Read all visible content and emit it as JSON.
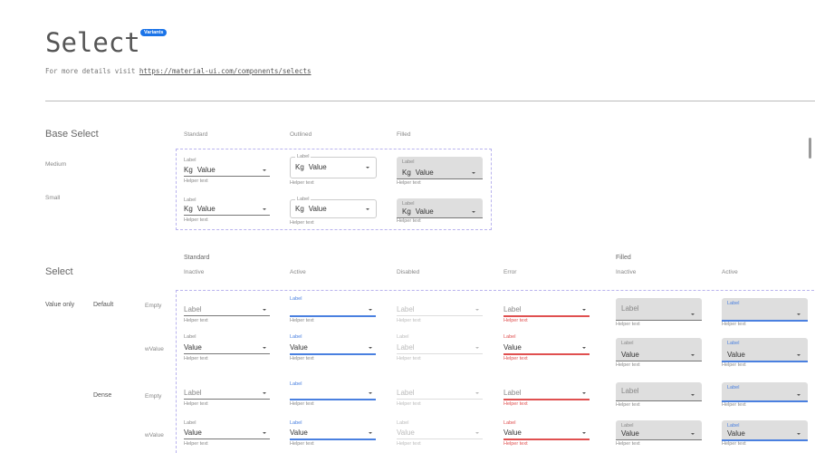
{
  "header": {
    "title": "Select",
    "badge": "Variants",
    "subtitle_prefix": "For more details visit ",
    "link": "https://material-ui.com/components/selects"
  },
  "base": {
    "title": "Base Select",
    "columns": [
      "Standard",
      "Outlined",
      "Filled"
    ],
    "rows": [
      "Medium",
      "Small"
    ]
  },
  "select": {
    "title": "Select",
    "groups": [
      "Standard",
      "Filled"
    ],
    "columns": [
      "Inactive",
      "Active",
      "Disabled",
      "Error",
      "Inactive",
      "Active"
    ],
    "row_group": "Value only",
    "densities": [
      "Default",
      "Dense"
    ],
    "states": [
      "Empty",
      "wValue"
    ]
  },
  "field": {
    "label": "Label",
    "value": "Value",
    "helper": "Helper text",
    "prefix": "Kg"
  },
  "colors": {
    "accent": "#4a80e0",
    "error": "#e05050",
    "badge": "#1a73e8",
    "filled_bg": "#dedede"
  }
}
